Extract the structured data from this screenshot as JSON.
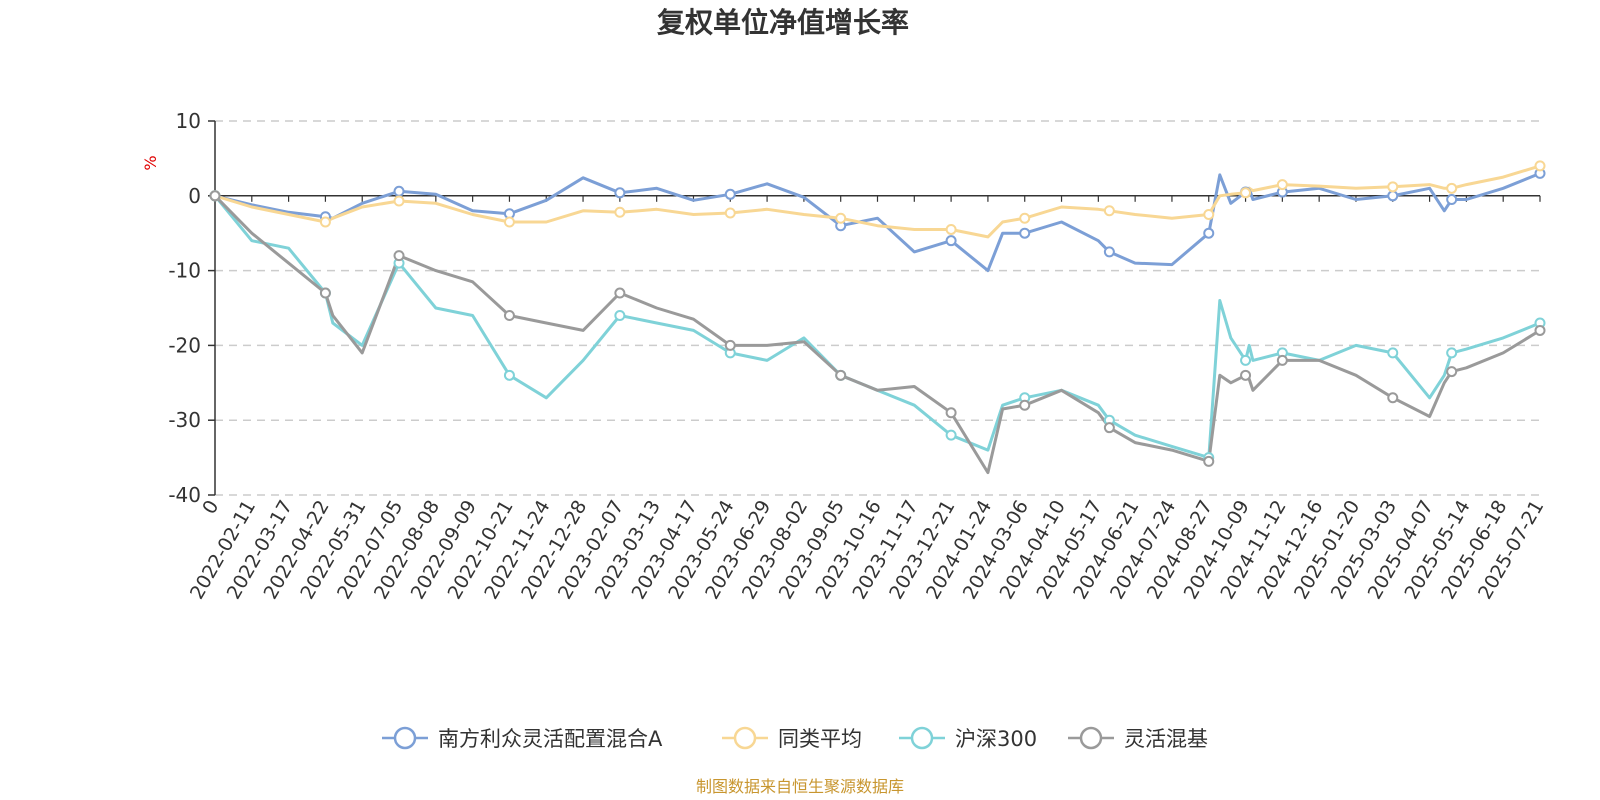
{
  "chart_data": {
    "type": "line",
    "title": "复权单位净值增长率",
    "ylabel": "%",
    "xlabel": "",
    "ylim": [
      -40,
      10
    ],
    "yticks": [
      10,
      0,
      -10,
      -20,
      -30,
      -40
    ],
    "grid": "horizontal-dashed",
    "legend_position": "bottom-center",
    "source": "制图数据来自恒生聚源数据库",
    "x_ticks": [
      "0",
      "2022-02-11",
      "2022-03-17",
      "2022-04-22",
      "2022-05-31",
      "2022-07-05",
      "2022-08-08",
      "2022-09-09",
      "2022-10-21",
      "2022-11-24",
      "2022-12-28",
      "2023-02-07",
      "2023-03-13",
      "2023-04-17",
      "2023-05-24",
      "2023-06-29",
      "2023-08-02",
      "2023-09-05",
      "2023-10-16",
      "2023-11-17",
      "2023-12-21",
      "2024-01-24",
      "2024-03-06",
      "2024-04-10",
      "2024-05-17",
      "2024-06-21",
      "2024-07-24",
      "2024-08-27",
      "2024-10-09",
      "2024-11-12",
      "2024-12-16",
      "2025-01-20",
      "2025-03-03",
      "2025-04-07",
      "2025-05-14",
      "2025-06-18",
      "2025-07-21"
    ],
    "x_positions": [
      0,
      1,
      2,
      3,
      3.2,
      4,
      5,
      6,
      7,
      8,
      9,
      10,
      11,
      12,
      13,
      14,
      15,
      16,
      17,
      18,
      19,
      20,
      21,
      21.4,
      22,
      23,
      24,
      24.3,
      25,
      26,
      27,
      27.3,
      27.6,
      28,
      28.1,
      28.2,
      29,
      30,
      31,
      32,
      33,
      33.4,
      33.6,
      34,
      35,
      36
    ],
    "series": [
      {
        "name": "南方利众灵活配置混合A",
        "color": "#7c9fd6",
        "values": [
          0,
          -1.2,
          -2.2,
          -2.8,
          -3,
          -1,
          0.6,
          0.2,
          -2,
          -2.4,
          -0.6,
          2.4,
          0.4,
          1,
          -0.6,
          0.2,
          1.6,
          -0.2,
          -4,
          -3,
          -7.5,
          -6,
          -10,
          -5,
          -5,
          -3.5,
          -6,
          -7.5,
          -9,
          -9.2,
          -5,
          2.8,
          -1,
          0.5,
          1,
          -0.5,
          0.5,
          1,
          -0.5,
          0,
          1,
          -2,
          -0.5,
          -0.5,
          1,
          3
        ]
      },
      {
        "name": "同类平均",
        "color": "#f8d794",
        "values": [
          0,
          -1.5,
          -2.5,
          -3.5,
          -3,
          -1.5,
          -0.7,
          -1,
          -2.5,
          -3.5,
          -3.5,
          -2,
          -2.2,
          -1.8,
          -2.5,
          -2.3,
          -1.8,
          -2.5,
          -3,
          -4,
          -4.5,
          -4.5,
          -5.5,
          -3.5,
          -3,
          -1.5,
          -1.8,
          -2,
          -2.5,
          -3,
          -2.5,
          0,
          0.2,
          0.4,
          1,
          0.7,
          1.5,
          1.3,
          1,
          1.2,
          1.5,
          1,
          1,
          1.5,
          2.5,
          4
        ]
      },
      {
        "name": "沪深300",
        "color": "#7fd2d8",
        "values": [
          0,
          -6,
          -7,
          -13,
          -17,
          -20,
          -9,
          -15,
          -16,
          -24,
          -27,
          -22,
          -16,
          -17,
          -18,
          -21,
          -22,
          -19,
          -24,
          -26,
          -28,
          -32,
          -34,
          -28,
          -27,
          -26,
          -28,
          -30,
          -32,
          -33.5,
          -35,
          -14,
          -19,
          -22,
          -20,
          -22,
          -21,
          -22,
          -20,
          -21,
          -27,
          -24,
          -21,
          -20.5,
          -19,
          -17
        ]
      },
      {
        "name": "灵活混基",
        "color": "#9a9a9a",
        "values": [
          0,
          -5,
          -9,
          -13,
          -16,
          -21,
          -8,
          -10,
          -11.5,
          -16,
          -17,
          -18,
          -13,
          -15,
          -16.5,
          -20,
          -20,
          -19.5,
          -24,
          -26,
          -25.5,
          -29,
          -37,
          -28.5,
          -28,
          -26,
          -29,
          -31,
          -33,
          -34,
          -35.5,
          -24,
          -25,
          -24,
          -24.5,
          -26,
          -22,
          -22,
          -24,
          -27,
          -29.5,
          -25,
          -23.5,
          -23,
          -21,
          -18
        ]
      }
    ]
  }
}
